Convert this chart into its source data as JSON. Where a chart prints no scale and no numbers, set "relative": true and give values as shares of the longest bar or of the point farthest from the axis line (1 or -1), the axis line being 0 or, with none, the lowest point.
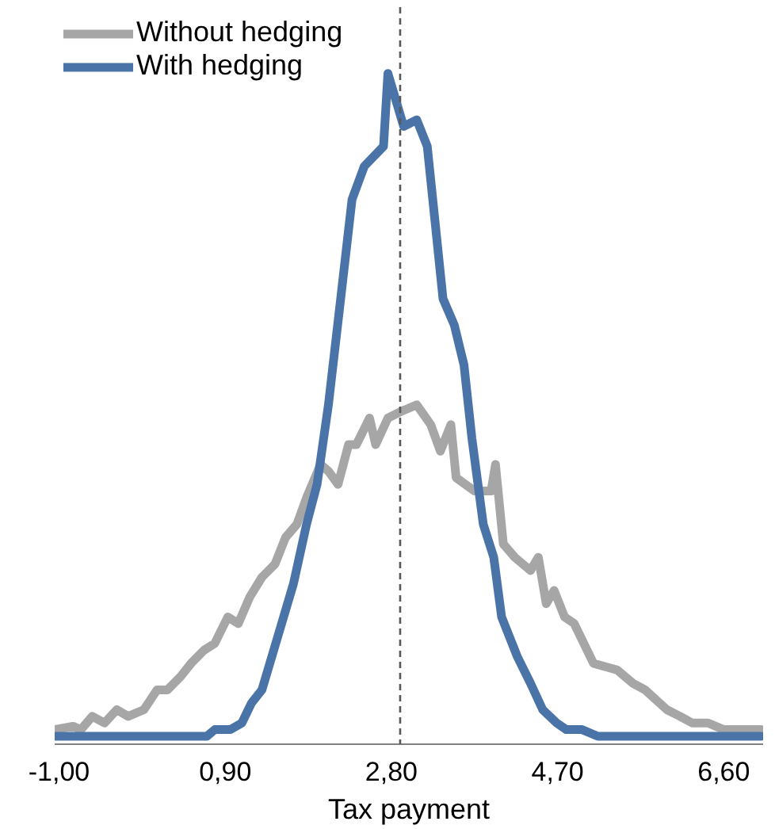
{
  "chart_data": {
    "type": "line",
    "relative": true,
    "xlabel": "Tax payment",
    "xlim": [
      -1.05,
      7.05
    ],
    "xticks": [
      {
        "value": -1,
        "label": "-1,00"
      },
      {
        "value": 0.9,
        "label": "0,90"
      },
      {
        "value": 2.8,
        "label": "2,80"
      },
      {
        "value": 4.7,
        "label": "4,70"
      },
      {
        "value": 6.6,
        "label": "6,60"
      }
    ],
    "legend": "top left",
    "grid": false,
    "line_style": "solid",
    "marker": "none",
    "ref_lines": [
      {
        "axis": "x",
        "value": 2.9,
        "color": "#595959",
        "line_style": "dashed"
      }
    ],
    "series": [
      {
        "name": "Without hedging",
        "color": "#a6a6a6",
        "x": [
          -1.05,
          -0.84,
          -0.75,
          -0.62,
          -0.48,
          -0.34,
          -0.21,
          -0.03,
          0.12,
          0.24,
          0.39,
          0.51,
          0.66,
          0.78,
          0.93,
          1.05,
          1.18,
          1.32,
          1.47,
          1.59,
          1.72,
          1.83,
          1.99,
          2.08,
          2.19,
          2.31,
          2.4,
          2.55,
          2.62,
          2.76,
          2.91,
          3.09,
          3.25,
          3.36,
          3.48,
          3.54,
          3.75,
          3.94,
          3.99,
          4.08,
          4.21,
          4.39,
          4.48,
          4.57,
          4.66,
          4.78,
          4.89,
          5.11,
          5.38,
          5.56,
          5.7,
          5.95,
          6.1,
          6.24,
          6.42,
          6.6,
          6.78,
          7.03
        ],
        "values": [
          0.01,
          0.015,
          0.01,
          0.03,
          0.02,
          0.04,
          0.03,
          0.04,
          0.07,
          0.07,
          0.09,
          0.11,
          0.13,
          0.14,
          0.18,
          0.17,
          0.21,
          0.24,
          0.26,
          0.3,
          0.32,
          0.36,
          0.41,
          0.4,
          0.38,
          0.44,
          0.44,
          0.48,
          0.44,
          0.48,
          0.49,
          0.5,
          0.47,
          0.43,
          0.47,
          0.39,
          0.37,
          0.37,
          0.41,
          0.29,
          0.27,
          0.25,
          0.27,
          0.2,
          0.22,
          0.18,
          0.17,
          0.11,
          0.1,
          0.08,
          0.07,
          0.04,
          0.03,
          0.02,
          0.02,
          0.01,
          0.01,
          0.01
        ]
      },
      {
        "name": "With hedging",
        "color": "#4a74a8",
        "x": [
          -1.05,
          0.69,
          0.78,
          0.96,
          1.09,
          1.2,
          1.32,
          1.5,
          1.68,
          1.83,
          1.95,
          2.08,
          2.22,
          2.35,
          2.49,
          2.71,
          2.76,
          2.94,
          3.09,
          3.21,
          3.39,
          3.52,
          3.63,
          3.72,
          3.85,
          3.97,
          4.06,
          4.24,
          4.39,
          4.53,
          4.69,
          4.8,
          4.98,
          5.16,
          7.03
        ],
        "values": [
          0,
          0,
          0.01,
          0.01,
          0.02,
          0.05,
          0.07,
          0.15,
          0.23,
          0.32,
          0.38,
          0.5,
          0.66,
          0.81,
          0.86,
          0.89,
          1,
          0.92,
          0.93,
          0.89,
          0.66,
          0.62,
          0.56,
          0.45,
          0.32,
          0.27,
          0.18,
          0.12,
          0.08,
          0.04,
          0.02,
          0.01,
          0.01,
          0,
          0
        ]
      }
    ]
  }
}
